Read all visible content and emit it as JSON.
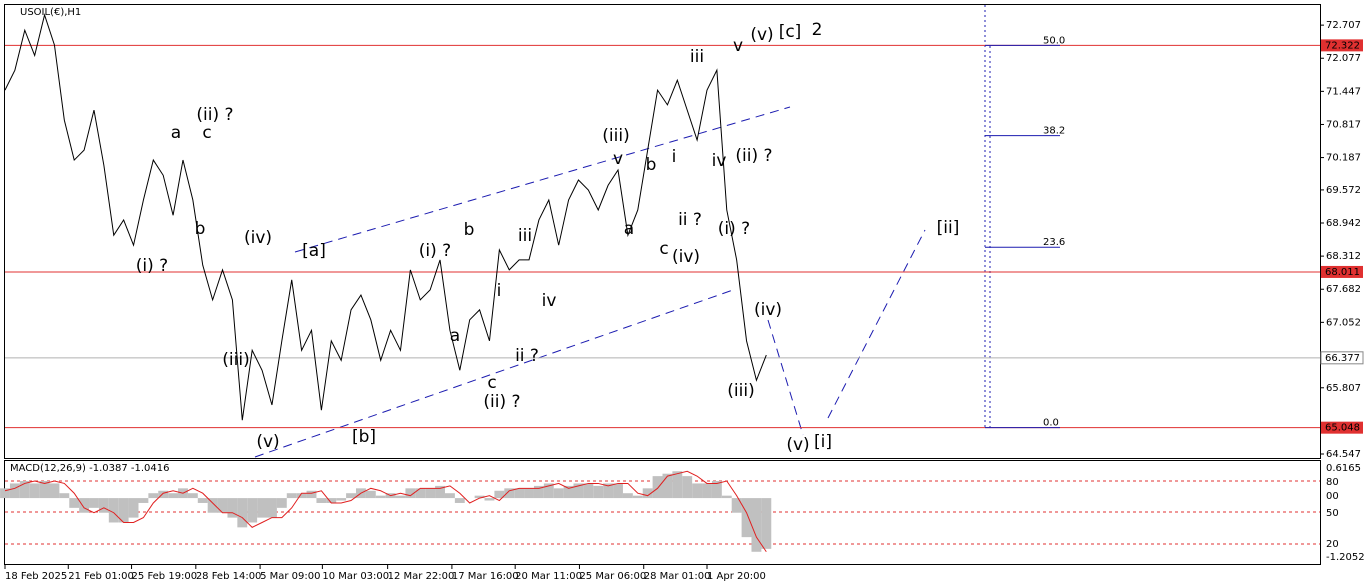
{
  "chart_data": {
    "type": "line",
    "title": "USOIL(€),H1",
    "values": [
      71.47,
      71.85,
      72.61,
      72.13,
      72.9,
      72.33,
      70.9,
      70.14,
      70.33,
      71.09,
      70.04,
      68.71,
      69.0,
      68.52,
      69.38,
      70.14,
      69.85,
      69.09,
      70.14,
      69.38,
      68.14,
      67.48,
      68.05,
      67.48,
      65.19,
      66.52,
      66.14,
      65.48,
      66.7,
      67.86,
      66.52,
      66.9,
      65.38,
      66.7,
      66.33,
      67.29,
      67.57,
      67.1,
      66.33,
      66.9,
      66.52,
      68.05,
      67.48,
      67.67,
      68.24,
      66.9,
      66.14,
      67.1,
      67.29,
      66.7,
      68.43,
      68.05,
      68.24,
      68.24,
      69.0,
      69.38,
      68.52,
      69.38,
      69.76,
      69.57,
      69.19,
      69.66,
      69.95,
      68.71,
      69.19,
      70.33,
      71.47,
      71.19,
      71.66,
      71.09,
      70.52,
      71.47,
      71.85,
      69.19,
      68.24,
      66.7,
      65.95,
      66.43
    ],
    "color": "#000000",
    "xlim": [
      0,
      133
    ],
    "xticks": [
      {
        "value": 0,
        "label": "18 Feb 2025"
      },
      {
        "value": 6.4,
        "label": "21 Feb 01:00"
      },
      {
        "value": 12.8,
        "label": "25 Feb 19:00"
      },
      {
        "value": 19.3,
        "label": "28 Feb 14:00"
      },
      {
        "value": 25.8,
        "label": "5 Mar 09:00"
      },
      {
        "value": 32.1,
        "label": "10 Mar 03:00"
      },
      {
        "value": 38.7,
        "label": "12 Mar 22:00"
      },
      {
        "value": 45.2,
        "label": "17 Mar 16:00"
      },
      {
        "value": 51.6,
        "label": "20 Mar 11:00"
      },
      {
        "value": 58.1,
        "label": "25 Mar 06:00"
      },
      {
        "value": 64.6,
        "label": "28 Mar 01:00"
      },
      {
        "value": 71.0,
        "label": "1 Apr 20:00"
      }
    ],
    "ylim": [
      64.49,
      73.09
    ],
    "yticks": [
      72.707,
      72.077,
      71.447,
      70.817,
      70.187,
      69.572,
      68.942,
      68.312,
      67.682,
      67.052,
      65.807,
      64.547
    ],
    "hlines": [
      72.322,
      68.011,
      65.048
    ],
    "hline_color": "#e03030",
    "current_price": 66.377,
    "fib_levels": [
      {
        "value": 50,
        "label": "50.0"
      },
      {
        "value": 38.2,
        "label": "38.2"
      },
      {
        "value": 23.6,
        "label": "23.6"
      },
      {
        "value": 0,
        "label": "0.0"
      }
    ],
    "annotations": [
      {
        "text": "(v)",
        "color": "#1c1ccc"
      },
      {
        "text": "[c]",
        "color": "#2e8b2e"
      },
      {
        "text": "2",
        "color": "#1c1ccc"
      },
      {
        "text": "v",
        "color": "#e020d0"
      },
      {
        "text": "iii",
        "color": "#e020d0"
      },
      {
        "text": "(ii) ?",
        "color": "#1c1ccc"
      },
      {
        "text": "a",
        "color": "#e020d0"
      },
      {
        "text": "c",
        "color": "#e020d0"
      },
      {
        "text": "b",
        "color": "#e020d0"
      },
      {
        "text": "(iv)",
        "color": "#1c1ccc"
      },
      {
        "text": "[a]",
        "color": "#2e8b2e"
      },
      {
        "text": "(i) ?",
        "color": "#1c1ccc"
      },
      {
        "text": "(iii)",
        "color": "#1c1ccc"
      },
      {
        "text": "(v)",
        "color": "#1c1ccc"
      },
      {
        "text": "[b]",
        "color": "#2e8b2e"
      },
      {
        "text": "(i) ?",
        "color": "#1c1ccc"
      },
      {
        "text": "b",
        "color": "#e020d0"
      },
      {
        "text": "a",
        "color": "#e020d0"
      },
      {
        "text": "iii",
        "color": "#e020d0"
      },
      {
        "text": "i",
        "color": "#e020d0"
      },
      {
        "text": "iv",
        "color": "#e020d0"
      },
      {
        "text": "ii ?",
        "color": "#e020d0"
      },
      {
        "text": "c",
        "color": "#e020d0"
      },
      {
        "text": "(ii) ?",
        "color": "#1c1ccc"
      },
      {
        "text": "(iii)",
        "color": "#1c1ccc"
      },
      {
        "text": "v",
        "color": "#e020d0"
      },
      {
        "text": "b",
        "color": "#e020d0"
      },
      {
        "text": "i",
        "color": "#e020d0"
      },
      {
        "text": "a",
        "color": "#e020d0"
      },
      {
        "text": "ii ?",
        "color": "#e020d0"
      },
      {
        "text": "c",
        "color": "#e020d0"
      },
      {
        "text": "(iv)",
        "color": "#1c1ccc"
      },
      {
        "text": "iv",
        "color": "#e020d0"
      },
      {
        "text": "(ii) ?",
        "color": "#1c1ccc"
      },
      {
        "text": "(i) ?",
        "color": "#1c1ccc"
      },
      {
        "text": "(iv)",
        "color": "#1c1ccc"
      },
      {
        "text": "(iii)",
        "color": "#1c1ccc"
      },
      {
        "text": "(v)",
        "color": "#1c1ccc"
      },
      {
        "text": "[i]",
        "color": "#2e8b2e"
      },
      {
        "text": "[ii]",
        "color": "#2e8b2e"
      }
    ],
    "macd": {
      "label": "MACD(12,26,9) -1.0387 -1.0416",
      "ylim": [
        -1.33,
        0.76
      ],
      "axis_labels": [
        "0.6165",
        "80",
        "00",
        "50",
        "20",
        "-1.2052"
      ],
      "histogram": {
        "color": "#c0c0c0",
        "values": [
          0.2,
          0.3,
          0.35,
          0.3,
          0.35,
          0.3,
          0.1,
          -0.2,
          -0.3,
          -0.2,
          -0.3,
          -0.5,
          -0.5,
          -0.4,
          -0.1,
          0.1,
          0.15,
          0.1,
          0.2,
          0.1,
          -0.1,
          -0.3,
          -0.3,
          -0.4,
          -0.6,
          -0.5,
          -0.4,
          -0.4,
          -0.2,
          0.1,
          0.1,
          0.15,
          -0.1,
          -0.1,
          -0.05,
          0.1,
          0.2,
          0.15,
          0.05,
          0.1,
          0.05,
          0.2,
          0.2,
          0.2,
          0.25,
          0.1,
          -0.1,
          0.0,
          0.05,
          -0.05,
          0.15,
          0.2,
          0.2,
          0.2,
          0.25,
          0.3,
          0.2,
          0.25,
          0.3,
          0.3,
          0.25,
          0.3,
          0.3,
          0.1,
          0.05,
          0.2,
          0.45,
          0.5,
          0.55,
          0.45,
          0.3,
          0.3,
          0.35,
          0.05,
          -0.3,
          -0.8,
          -1.1,
          -1.04
        ]
      },
      "signal": {
        "color": "#e02020",
        "values": [
          0.15,
          0.2,
          0.3,
          0.35,
          0.3,
          0.35,
          0.3,
          0.1,
          -0.2,
          -0.3,
          -0.2,
          -0.3,
          -0.5,
          -0.5,
          -0.4,
          -0.1,
          0.1,
          0.15,
          0.1,
          0.2,
          0.1,
          -0.1,
          -0.3,
          -0.3,
          -0.4,
          -0.6,
          -0.5,
          -0.4,
          -0.4,
          -0.2,
          0.1,
          0.1,
          0.15,
          -0.1,
          -0.1,
          -0.05,
          0.1,
          0.2,
          0.15,
          0.05,
          0.1,
          0.05,
          0.2,
          0.2,
          0.2,
          0.25,
          0.1,
          -0.1,
          0.0,
          0.05,
          -0.05,
          0.15,
          0.2,
          0.2,
          0.2,
          0.25,
          0.3,
          0.2,
          0.25,
          0.3,
          0.3,
          0.25,
          0.3,
          0.3,
          0.1,
          0.05,
          0.2,
          0.45,
          0.5,
          0.55,
          0.45,
          0.3,
          0.3,
          0.35,
          0.05,
          -0.3,
          -0.8,
          -1.1
        ]
      }
    }
  }
}
